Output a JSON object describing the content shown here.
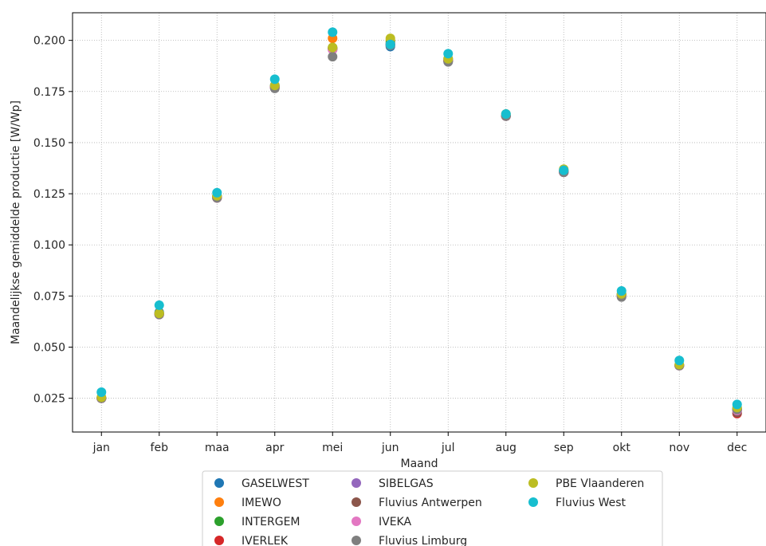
{
  "chart_data": {
    "type": "scatter",
    "title": "",
    "xlabel": "Maand",
    "ylabel": "Maandelijkse gemiddelde productie [W/Wp]",
    "categories": [
      "jan",
      "feb",
      "maa",
      "apr",
      "mei",
      "jun",
      "jul",
      "aug",
      "sep",
      "okt",
      "nov",
      "dec"
    ],
    "yticks": [
      "0.025",
      "0.050",
      "0.075",
      "0.100",
      "0.125",
      "0.150",
      "0.175",
      "0.200"
    ],
    "ylim": [
      0.0085,
      0.2135
    ],
    "grid": true,
    "legend_position": "bottom-center",
    "series": [
      {
        "name": "GASELWEST",
        "color": "#1f77b4",
        "values": [
          0.025,
          0.067,
          0.124,
          0.178,
          0.196,
          0.197,
          0.191,
          0.163,
          0.136,
          0.076,
          0.041,
          0.02
        ]
      },
      {
        "name": "IMEWO",
        "color": "#ff7f0e",
        "values": [
          0.025,
          0.0665,
          0.1235,
          0.1775,
          0.201,
          0.2,
          0.19,
          0.163,
          0.1365,
          0.0755,
          0.041,
          0.0195
        ]
      },
      {
        "name": "INTERGEM",
        "color": "#2ca02c",
        "values": [
          0.025,
          0.0665,
          0.1235,
          0.1775,
          0.1965,
          0.199,
          0.19,
          0.163,
          0.136,
          0.0755,
          0.041,
          0.0195
        ]
      },
      {
        "name": "IVERLEK",
        "color": "#d62728",
        "values": [
          0.025,
          0.066,
          0.123,
          0.177,
          0.196,
          0.198,
          0.19,
          0.163,
          0.1355,
          0.075,
          0.041,
          0.0175
        ]
      },
      {
        "name": "SIBELGAS",
        "color": "#9467bd",
        "values": [
          0.025,
          0.066,
          0.123,
          0.177,
          0.196,
          0.198,
          0.19,
          0.163,
          0.1355,
          0.075,
          0.041,
          0.019
        ]
      },
      {
        "name": "Fluvius Antwerpen",
        "color": "#8c564b",
        "values": [
          0.025,
          0.066,
          0.123,
          0.177,
          0.1955,
          0.198,
          0.19,
          0.163,
          0.1355,
          0.075,
          0.041,
          0.018
        ]
      },
      {
        "name": "IVEKA",
        "color": "#e377c2",
        "values": [
          0.025,
          0.066,
          0.123,
          0.177,
          0.1955,
          0.198,
          0.19,
          0.163,
          0.1355,
          0.075,
          0.041,
          0.019
        ]
      },
      {
        "name": "Fluvius Limburg",
        "color": "#7f7f7f",
        "values": [
          0.025,
          0.066,
          0.123,
          0.1765,
          0.192,
          0.1975,
          0.1895,
          0.163,
          0.1355,
          0.0745,
          0.041,
          0.0195
        ]
      },
      {
        "name": "PBE Vlaanderen",
        "color": "#bcbd22",
        "values": [
          0.0255,
          0.0665,
          0.124,
          0.178,
          0.1965,
          0.201,
          0.191,
          0.164,
          0.137,
          0.076,
          0.0415,
          0.0205
        ]
      },
      {
        "name": "Fluvius West",
        "color": "#17becf",
        "values": [
          0.028,
          0.0705,
          0.1255,
          0.181,
          0.204,
          0.198,
          0.1935,
          0.164,
          0.1365,
          0.0775,
          0.0435,
          0.022
        ]
      }
    ]
  }
}
